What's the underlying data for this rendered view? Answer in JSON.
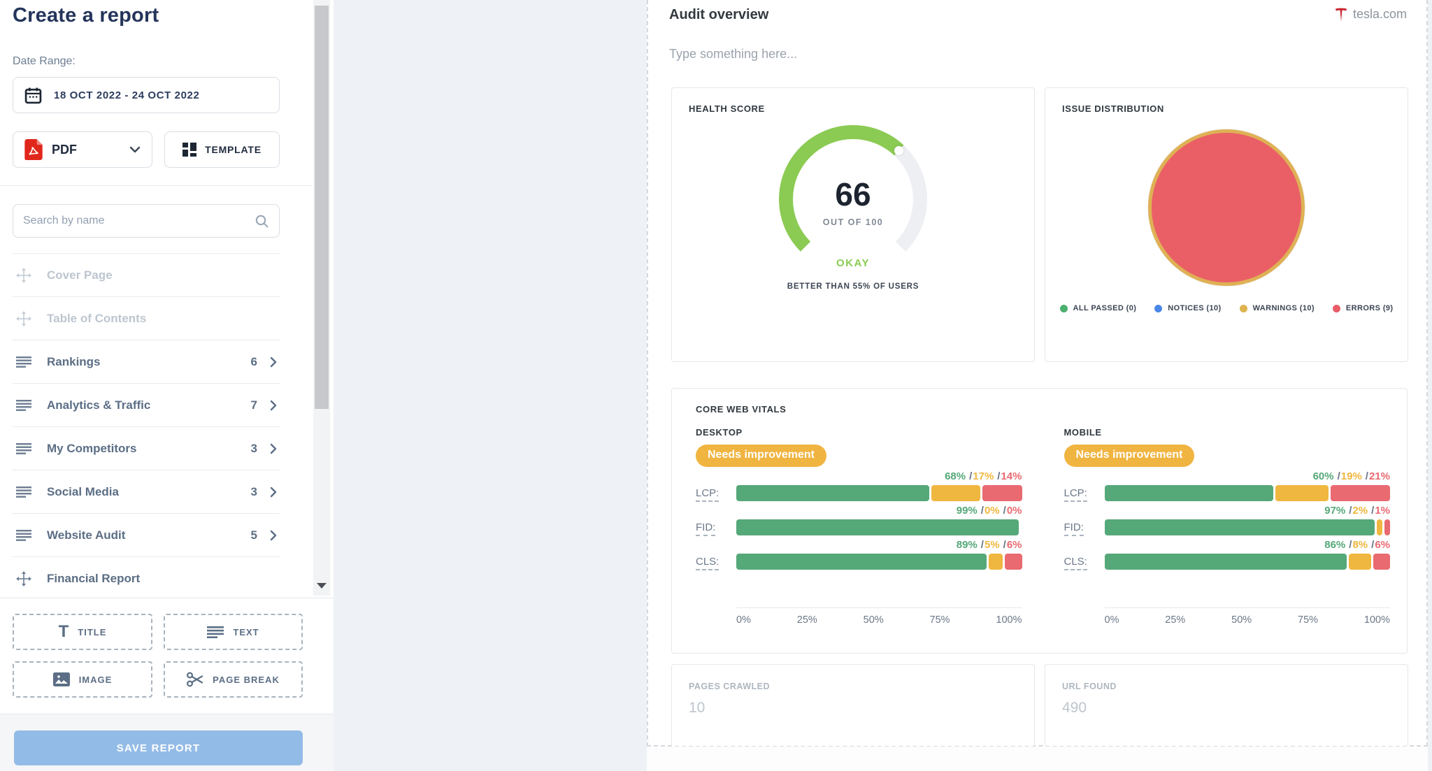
{
  "sidebar": {
    "title": "Create a report",
    "date_range_label": "Date Range:",
    "date_range_value": "18 OCT 2022 - 24 OCT 2022",
    "format_label": "PDF",
    "template_label": "TEMPLATE",
    "search_placeholder": "Search by name",
    "sections": [
      {
        "label": "Cover Page",
        "count": "",
        "disabled": true
      },
      {
        "label": "Table of Contents",
        "count": "",
        "disabled": true
      },
      {
        "label": "Rankings",
        "count": "6",
        "disabled": false
      },
      {
        "label": "Analytics & Traffic",
        "count": "7",
        "disabled": false
      },
      {
        "label": "My Competitors",
        "count": "3",
        "disabled": false
      },
      {
        "label": "Social Media",
        "count": "3",
        "disabled": false
      },
      {
        "label": "Website Audit",
        "count": "5",
        "disabled": false
      },
      {
        "label": "Financial Report",
        "count": "",
        "disabled": false
      }
    ],
    "insert_buttons": {
      "title": "TITLE",
      "text": "TEXT",
      "image": "IMAGE",
      "page_break": "PAGE BREAK"
    },
    "save_label": "SAVE REPORT"
  },
  "canvas": {
    "title": "Audit overview",
    "site": "tesla.com",
    "placeholder": "Type something here...",
    "health": {
      "title": "HEALTH SCORE",
      "score": "66",
      "out_of": "OUT OF 100",
      "status": "OKAY",
      "comparison": "BETTER THAN 55% OF USERS"
    },
    "issues": {
      "title": "ISSUE DISTRIBUTION",
      "legend": [
        {
          "label": "ALL PASSED (0)",
          "color": "#4CAF6E"
        },
        {
          "label": "NOTICES (10)",
          "color": "#4A86E8"
        },
        {
          "label": "WARNINGS (10)",
          "color": "#DDB24F"
        },
        {
          "label": "ERRORS (9)",
          "color": "#E85D65"
        }
      ]
    },
    "cwv": {
      "title": "CORE WEB VITALS",
      "axis": [
        "0%",
        "25%",
        "50%",
        "75%",
        "100%"
      ],
      "columns": [
        {
          "label": "DESKTOP",
          "badge": "Needs improvement",
          "rows": [
            {
              "label": "LCP:",
              "good": "68%",
              "mid": "17%",
              "poor": "14%"
            },
            {
              "label": "FID:",
              "good": "99%",
              "mid": "0%",
              "poor": "0%"
            },
            {
              "label": "CLS:",
              "good": "89%",
              "mid": "5%",
              "poor": "6%"
            }
          ]
        },
        {
          "label": "MOBILE",
          "badge": "Needs improvement",
          "rows": [
            {
              "label": "LCP:",
              "good": "60%",
              "mid": "19%",
              "poor": "21%"
            },
            {
              "label": "FID:",
              "good": "97%",
              "mid": "2%",
              "poor": "1%"
            },
            {
              "label": "CLS:",
              "good": "86%",
              "mid": "8%",
              "poor": "6%"
            }
          ]
        }
      ]
    },
    "stats": [
      {
        "label": "PAGES CRAWLED",
        "value": "10"
      },
      {
        "label": "URL FOUND",
        "value": "490"
      }
    ]
  },
  "colors": {
    "bar_good": "#55A878",
    "bar_mid": "#EFB73F",
    "bar_poor": "#E96A70",
    "gauge_green": "#8BCB53",
    "gauge_track": "#EDEFF3",
    "badge": "#F0B440",
    "pie_fill": "#EA5F66",
    "pie_ring": "#DFB155"
  }
}
